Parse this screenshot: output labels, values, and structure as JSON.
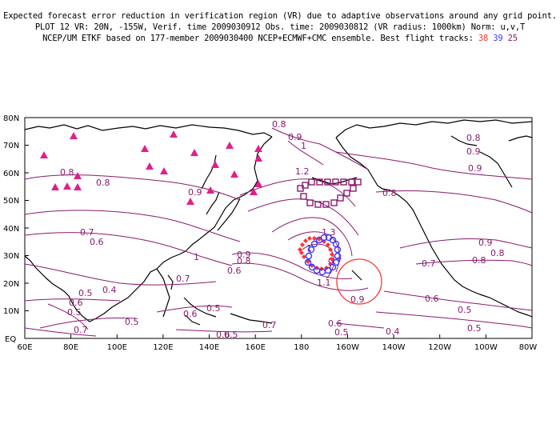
{
  "header": {
    "line1": "Expected forecast error reduction in verification region (VR) due to adaptive observations around any grid point.",
    "line2": "PLOT 12 VR: 20N, -155W, Verif. time 2009030912 Obs. time: 2009030812 (VR radius: 1000km) Norm: u,v,T",
    "line3_prefix": "NCEP/UM ETKF based on 177-member 2009030400 NCEP+ECMWF+CMC ensemble. Best flight tracks:",
    "track_a": "38",
    "track_b": "39",
    "track_c": "25"
  },
  "axes": {
    "lat_labels": [
      "80N",
      "70N",
      "60N",
      "50N",
      "40N",
      "30N",
      "20N",
      "10N",
      "EQ"
    ],
    "lon_labels": [
      "60E",
      "80E",
      "100E",
      "120E",
      "140E",
      "160E",
      "180",
      "160W",
      "140W",
      "120W",
      "100W",
      "80W"
    ]
  },
  "contour_labels": [
    "0.8",
    "0.9",
    "1",
    "1.2",
    "0.8",
    "0.9",
    "0.8",
    "0.9",
    "0.8",
    "0.9",
    "0.8",
    "0.7",
    "0.6",
    "0.7",
    "0.5",
    "0.4",
    "0.6",
    "0.5",
    "0.7",
    "0.5",
    "0.6",
    "0.5",
    "0.9",
    "0.8",
    "0.6",
    "0.7",
    "1",
    "1.1",
    "1.3",
    "1",
    "0.9",
    "0.8",
    "0.7",
    "0.6",
    "0.5",
    "0.6",
    "0.5",
    "0.4",
    "0.5",
    "0.9",
    "0.8",
    "0.7",
    "0.6",
    "0.5"
  ],
  "colors": {
    "contour": "#8a1a6e",
    "track_38": "#ff3333",
    "track_39": "#3a3aff",
    "track_25": "#8a1a6e",
    "verification_circle": "#ff3333",
    "triangle": "#e0208a"
  }
}
